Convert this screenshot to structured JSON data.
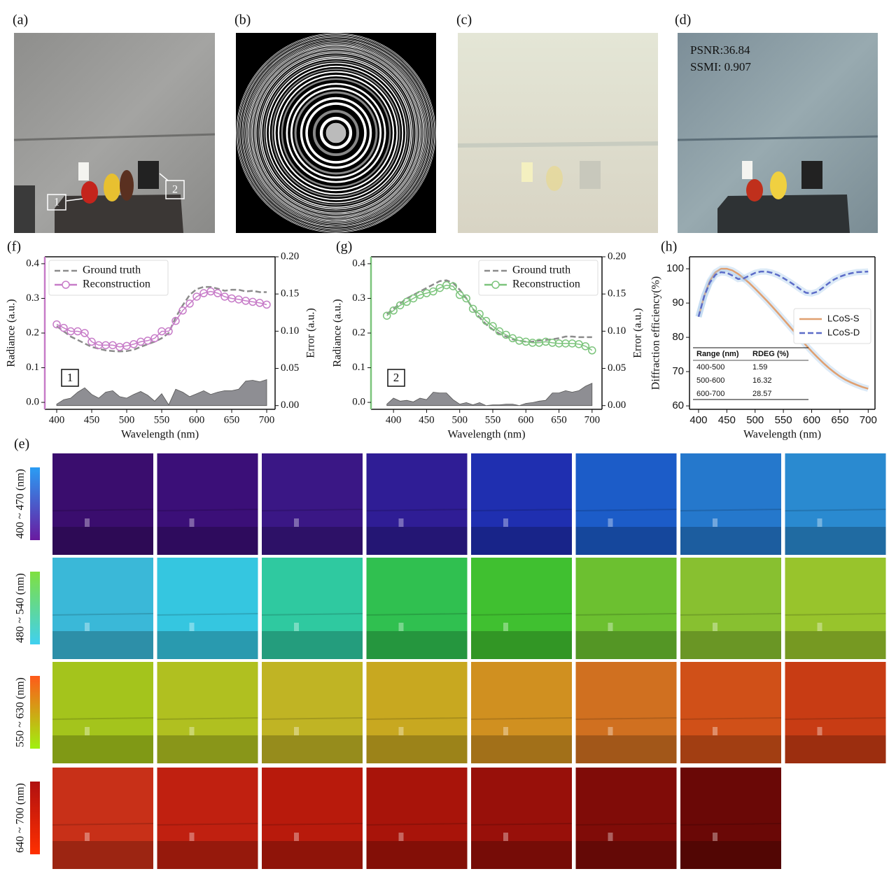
{
  "panel_labels": {
    "a": "(a)",
    "b": "(b)",
    "c": "(c)",
    "d": "(d)",
    "e": "(e)",
    "f": "(f)",
    "g": "(g)",
    "h": "(h)"
  },
  "image_panels": {
    "a": {
      "callouts": [
        "1",
        "2"
      ]
    },
    "d": {
      "metrics": [
        "PSNR:36.84",
        "SSMI: 0.907"
      ]
    }
  },
  "spectral_rows": [
    "400 ~ 470 (nm)",
    "480 ~ 540 (nm)",
    "550 ~ 630 (nm)",
    "640 ~ 700 (nm)"
  ],
  "chart_data": [
    {
      "type": "line",
      "x": [
        400,
        410,
        420,
        430,
        440,
        450,
        460,
        470,
        480,
        490,
        500,
        510,
        520,
        530,
        540,
        550,
        560,
        570,
        580,
        590,
        600,
        610,
        620,
        630,
        640,
        650,
        660,
        670,
        680,
        690,
        700
      ],
      "series": [
        {
          "name": "Ground truth",
          "color": "#8c8c8c",
          "style": "dashed",
          "values": [
            0.22,
            0.205,
            0.19,
            0.18,
            0.17,
            0.16,
            0.155,
            0.15,
            0.148,
            0.147,
            0.148,
            0.152,
            0.16,
            0.168,
            0.175,
            0.185,
            0.2,
            0.245,
            0.28,
            0.31,
            0.327,
            0.333,
            0.333,
            0.328,
            0.322,
            0.325,
            0.325,
            0.32,
            0.322,
            0.318,
            0.318
          ]
        },
        {
          "name": "Reconstruction",
          "color": "#c77cc8",
          "style": "markers",
          "values": [
            0.225,
            0.215,
            0.205,
            0.205,
            0.2,
            0.175,
            0.165,
            0.165,
            0.165,
            0.16,
            0.163,
            0.168,
            0.175,
            0.178,
            0.185,
            0.205,
            0.205,
            0.235,
            0.265,
            0.285,
            0.305,
            0.315,
            0.32,
            0.315,
            0.305,
            0.3,
            0.297,
            0.293,
            0.29,
            0.287,
            0.282
          ]
        },
        {
          "color": "#8e8e93",
          "style": "area",
          "axis": "y2",
          "values": [
            0.002,
            0.008,
            0.01,
            0.018,
            0.024,
            0.015,
            0.01,
            0.018,
            0.02,
            0.012,
            0.01,
            0.015,
            0.019,
            0.014,
            0.006,
            0.016,
            0.001,
            0.022,
            0.018,
            0.012,
            0.016,
            0.02,
            0.015,
            0.018,
            0.02,
            0.02,
            0.022,
            0.033,
            0.034,
            0.032,
            0.035
          ]
        }
      ],
      "xlim": [
        383,
        712
      ],
      "xticks": [
        400,
        450,
        500,
        550,
        600,
        650,
        700
      ],
      "ylim": [
        -0.02,
        0.42
      ],
      "yticks": [
        {
          "value": 0,
          "label": "0.0"
        },
        0.1,
        0.2,
        0.3,
        0.4
      ],
      "y2lim": [
        -0.005,
        0.2
      ],
      "y2ticks": [
        {
          "value": 0,
          "label": "0.00"
        },
        0.05,
        {
          "value": 0.1,
          "label": "0.10"
        },
        0.15,
        {
          "value": 0.2,
          "label": "0.20"
        }
      ],
      "xlabel": "Wavelength (nm)",
      "ylabel": "Radiance (a.u.)",
      "y2label": "Error (a.u.)",
      "annotation": "1",
      "legend": "upper left"
    },
    {
      "type": "line",
      "x": [
        390,
        400,
        410,
        420,
        430,
        440,
        450,
        460,
        470,
        480,
        490,
        500,
        510,
        520,
        530,
        540,
        550,
        560,
        570,
        580,
        590,
        600,
        610,
        620,
        630,
        640,
        650,
        660,
        670,
        680,
        690,
        700
      ],
      "series": [
        {
          "name": "Ground truth",
          "color": "#8c8c8c",
          "style": "dashed",
          "values": [
            0.255,
            0.27,
            0.285,
            0.3,
            0.31,
            0.32,
            0.33,
            0.34,
            0.35,
            0.352,
            0.345,
            0.325,
            0.3,
            0.27,
            0.245,
            0.225,
            0.21,
            0.198,
            0.19,
            0.182,
            0.178,
            0.175,
            0.175,
            0.178,
            0.18,
            0.182,
            0.185,
            0.19,
            0.19,
            0.188,
            0.188,
            0.188
          ]
        },
        {
          "name": "Reconstruction",
          "color": "#7cc47c",
          "style": "markers",
          "values": [
            0.25,
            0.265,
            0.28,
            0.29,
            0.3,
            0.31,
            0.315,
            0.32,
            0.33,
            0.338,
            0.335,
            0.31,
            0.3,
            0.27,
            0.255,
            0.235,
            0.22,
            0.205,
            0.195,
            0.185,
            0.178,
            0.175,
            0.172,
            0.172,
            0.175,
            0.172,
            0.17,
            0.17,
            0.17,
            0.168,
            0.162,
            0.15
          ]
        },
        {
          "color": "#8e8e93",
          "style": "area",
          "axis": "y2",
          "values": [
            0.002,
            0.01,
            0.006,
            0.007,
            0.005,
            0.01,
            0.008,
            0.018,
            0.017,
            0.017,
            0.008,
            0.002,
            0.004,
            0.001,
            0.004,
            0,
            0.001,
            0.001,
            0.002,
            0.002,
            0,
            0.003,
            0.004,
            0.006,
            0.007,
            0.017,
            0.017,
            0.02,
            0.018,
            0.02,
            0.026,
            0.03
          ]
        }
      ],
      "xlim": [
        366,
        715
      ],
      "xticks": [
        400,
        450,
        500,
        550,
        600,
        650,
        700
      ],
      "ylim": [
        -0.02,
        0.42
      ],
      "yticks": [
        {
          "value": 0,
          "label": "0.0"
        },
        0.1,
        0.2,
        0.3,
        0.4
      ],
      "y2lim": [
        -0.005,
        0.2
      ],
      "y2ticks": [
        {
          "value": 0,
          "label": "0.00"
        },
        0.05,
        {
          "value": 0.1,
          "label": "0.10"
        },
        0.15,
        {
          "value": 0.2,
          "label": "0.20"
        }
      ],
      "xlabel": "Wavelength (nm)",
      "ylabel": "Radiance (a.u.)",
      "y2label": "Error (a.u.)",
      "annotation": "2",
      "legend": "upper right"
    },
    {
      "type": "line",
      "x": [
        400,
        410,
        420,
        430,
        440,
        450,
        460,
        470,
        480,
        490,
        500,
        510,
        520,
        530,
        540,
        550,
        560,
        570,
        580,
        590,
        600,
        610,
        620,
        630,
        640,
        650,
        660,
        670,
        680,
        690,
        700
      ],
      "series": [
        {
          "name": "LCoS-S",
          "color": "#e0a070",
          "style": "solid",
          "values": [
            86,
            92,
            96.5,
            99,
            100,
            100,
            99.5,
            98.5,
            97.2,
            95.8,
            94.2,
            92.5,
            90.8,
            89,
            87.2,
            85.3,
            83.4,
            81.5,
            79.6,
            77.7,
            75.9,
            74.2,
            72.6,
            71.1,
            69.8,
            68.6,
            67.6,
            66.8,
            66.1,
            65.5,
            65
          ]
        },
        {
          "name": "LCoS-D",
          "color": "#5c6cc8",
          "style": "dashed",
          "values": [
            86,
            92,
            96,
            98.3,
            99,
            98.8,
            98,
            97,
            97.2,
            98,
            98.8,
            99.2,
            99.2,
            98.8,
            98.2,
            97.3,
            96.3,
            95.2,
            94,
            93,
            92.8,
            93.3,
            94.5,
            95.8,
            96.9,
            97.7,
            98.3,
            98.7,
            99,
            99.1,
            99.2
          ]
        }
      ],
      "xlim": [
        384,
        712
      ],
      "xticks": [
        400,
        450,
        500,
        550,
        600,
        650,
        700
      ],
      "ylim": [
        59,
        103.5
      ],
      "yticks": [
        60,
        70,
        80,
        90,
        100
      ],
      "xlabel": "Wavelength (nm)",
      "ylabel": "Diffraction efficiency(%)",
      "legend": "center right",
      "table": {
        "columns": [
          "Range (nm)",
          "RDEG (%)"
        ],
        "rows": [
          [
            "400-500",
            "1.59"
          ],
          [
            "500-600",
            "16.32"
          ],
          [
            "600-700",
            "28.57"
          ]
        ]
      }
    }
  ]
}
